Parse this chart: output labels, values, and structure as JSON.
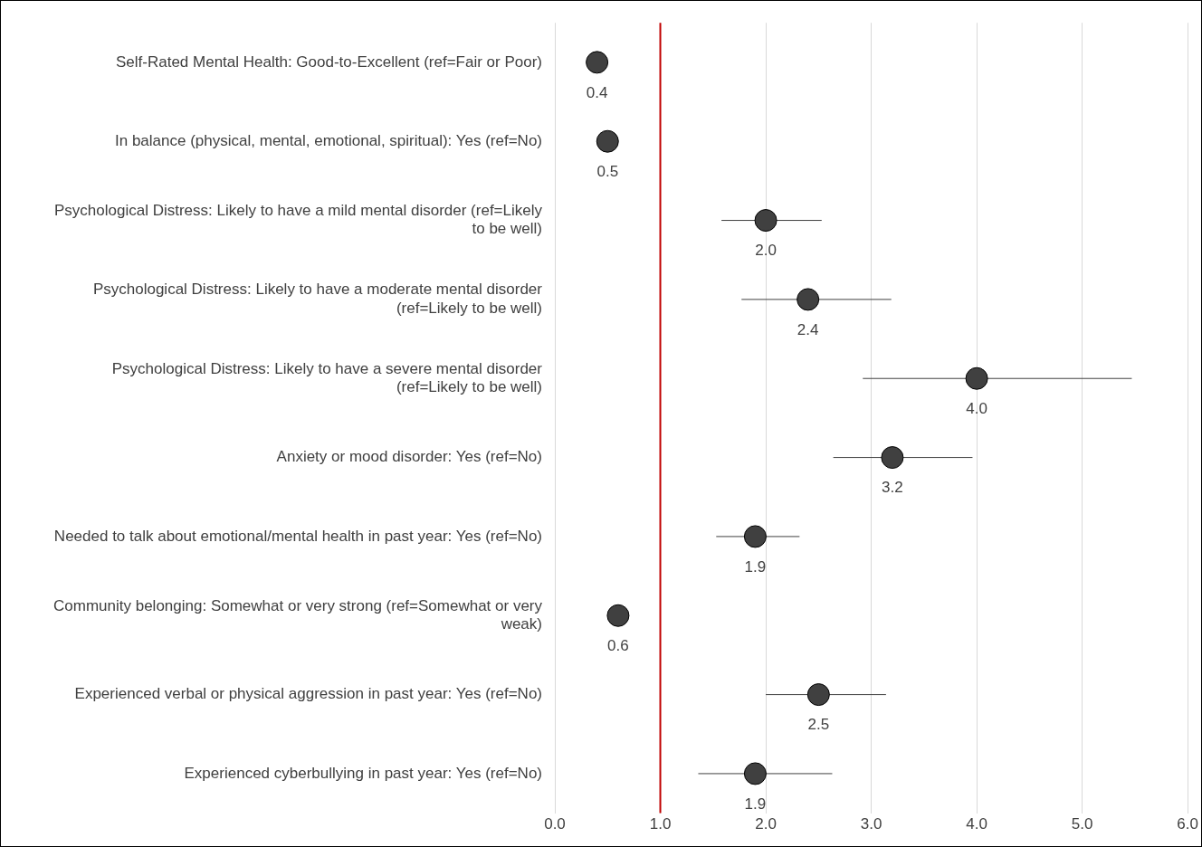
{
  "chart_data": {
    "type": "scatter",
    "orientation": "horizontal",
    "categories": [
      "Self-Rated Mental Health: Good-to-Excellent (ref=Fair or Poor)",
      "In balance (physical, mental, emotional, spiritual): Yes (ref=No)",
      "Psychological Distress: Likely to have a mild mental disorder (ref=Likely to be well)",
      "Psychological Distress: Likely to have a moderate mental disorder (ref=Likely to be well)",
      "Psychological Distress: Likely to have a severe mental disorder (ref=Likely to be well)",
      "Anxiety or mood disorder: Yes (ref=No)",
      "Needed to talk about emotional/mental health in past year: Yes (ref=No)",
      "Community belonging: Somewhat or very strong (ref=Somewhat or very weak)",
      "Experienced verbal or physical aggression in past year: Yes (ref=No)",
      "Experienced cyberbullying in past year: Yes (ref=No)"
    ],
    "values": [
      0.4,
      0.5,
      2.0,
      2.4,
      4.0,
      3.2,
      1.9,
      0.6,
      2.5,
      1.9
    ],
    "value_labels": [
      "0.4",
      "0.5",
      "2.0",
      "2.4",
      "4.0",
      "3.2",
      "1.9",
      "0.6",
      "2.5",
      "1.9"
    ],
    "errors": [
      null,
      [
        0.5,
        0.58
      ],
      [
        1.58,
        2.53
      ],
      [
        1.77,
        3.19
      ],
      [
        2.92,
        5.47
      ],
      [
        2.64,
        3.96
      ],
      [
        1.53,
        2.32
      ],
      [
        0.6,
        0.7
      ],
      [
        2.0,
        3.14
      ],
      [
        1.36,
        2.63
      ]
    ],
    "color": "#404040",
    "marker": "circle",
    "xlim": [
      0,
      6
    ],
    "xticks": [
      {
        "value": 0,
        "label": "0.0"
      },
      {
        "value": 1,
        "label": "1.0"
      },
      {
        "value": 2,
        "label": "2.0"
      },
      {
        "value": 3,
        "label": "3.0"
      },
      {
        "value": 4,
        "label": "4.0"
      },
      {
        "value": 5,
        "label": "5.0"
      },
      {
        "value": 6,
        "label": "6.0"
      }
    ],
    "grid": "x",
    "legend": false,
    "ref_lines": [
      {
        "axis": "x",
        "value": 1,
        "color": "#c00000"
      }
    ]
  }
}
